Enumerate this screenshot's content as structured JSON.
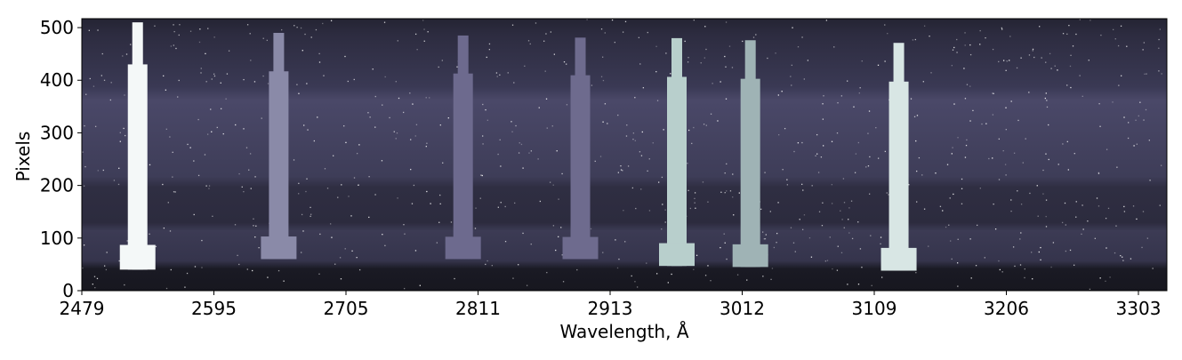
{
  "chart_data": {
    "type": "image",
    "xlabel": "Wavelength, Å",
    "ylabel": "Pixels",
    "xlim": [
      2479,
      3324
    ],
    "ylim": [
      0,
      517
    ],
    "xticks": [
      2479,
      2595,
      2705,
      2811,
      2913,
      3012,
      3109,
      3206,
      3303
    ],
    "yticks": [
      0,
      100,
      200,
      300,
      400,
      500
    ],
    "lines": [
      {
        "x": 2528,
        "top": 510,
        "bottom": 40,
        "color": "#f4f8f8"
      },
      {
        "x": 2649,
        "top": 490,
        "bottom": 60,
        "color": "#8a8aa8"
      },
      {
        "x": 2799,
        "top": 485,
        "bottom": 60,
        "color": "#6d6a8e"
      },
      {
        "x": 2890,
        "top": 481,
        "bottom": 60,
        "color": "#6e6b8e"
      },
      {
        "x": 2963,
        "top": 480,
        "bottom": 47,
        "color": "#b8cfcc"
      },
      {
        "x": 3018,
        "top": 476,
        "bottom": 45,
        "color": "#9fb3b5"
      },
      {
        "x": 3127,
        "top": 471,
        "bottom": 38,
        "color": "#d8e6e4"
      }
    ]
  }
}
